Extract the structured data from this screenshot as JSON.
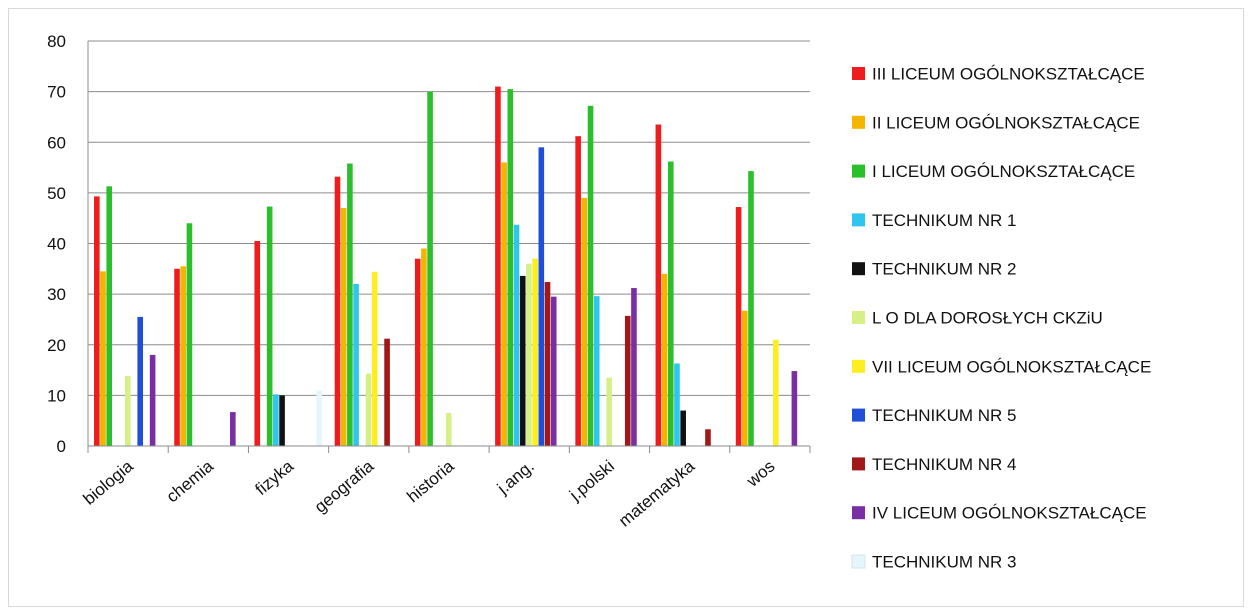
{
  "chart_data": {
    "type": "bar",
    "title": "",
    "xlabel": "",
    "ylabel": "",
    "ylim": [
      0,
      80
    ],
    "yticks": [
      0,
      10,
      20,
      30,
      40,
      50,
      60,
      70,
      80
    ],
    "grid": true,
    "legend_position": "right",
    "categories": [
      "biologia",
      "chemia",
      "fizyka",
      "geografia",
      "historia",
      "j.ang.",
      "j.polski",
      "matematyka",
      "wos"
    ],
    "series": [
      {
        "name": "III LICEUM OGÓLNOKSZTAŁCĄCE",
        "color": "#ee1c1c",
        "values": [
          49.3,
          35,
          40.5,
          53.2,
          37,
          71,
          61.2,
          63.5,
          47.2
        ]
      },
      {
        "name": "II LICEUM OGÓLNOKSZTAŁCĄCE",
        "color": "#f5b400",
        "values": [
          34.5,
          35.5,
          null,
          47,
          39,
          56,
          49,
          34,
          26.7
        ]
      },
      {
        "name": "I LICEUM OGÓLNOKSZTAŁCĄCE",
        "color": "#2bc02b",
        "values": [
          51.3,
          44,
          47.3,
          55.8,
          70,
          70.5,
          67.2,
          56.2,
          54.3
        ]
      },
      {
        "name": "TECHNIKUM NR 1",
        "color": "#2ec5ef",
        "values": [
          null,
          null,
          10.2,
          32,
          null,
          43.7,
          29.6,
          16.3,
          null
        ]
      },
      {
        "name": "TECHNIKUM NR 2",
        "color": "#111111",
        "values": [
          null,
          null,
          10,
          null,
          null,
          33.6,
          null,
          7,
          null
        ]
      },
      {
        "name": "L O DLA DOROSŁYCH CKZiU",
        "color": "#d6ef86",
        "values": [
          13.8,
          null,
          null,
          14.3,
          6.5,
          36,
          13.5,
          null,
          null
        ]
      },
      {
        "name": "VII LICEUM OGÓLNOKSZTAŁCĄCE",
        "color": "#fcee21",
        "values": [
          null,
          null,
          null,
          34.4,
          null,
          37,
          null,
          null,
          21
        ]
      },
      {
        "name": "TECHNIKUM NR 5",
        "color": "#1f4fd8",
        "values": [
          25.5,
          null,
          null,
          null,
          null,
          59,
          null,
          null,
          null
        ]
      },
      {
        "name": "TECHNIKUM NR 4",
        "color": "#a01818",
        "values": [
          null,
          null,
          null,
          21.2,
          null,
          32.4,
          25.7,
          3.3,
          null
        ]
      },
      {
        "name": "IV LICEUM OGÓLNOKSZTAŁCĄCE",
        "color": "#7a2ea3",
        "values": [
          18,
          6.7,
          null,
          null,
          null,
          29.5,
          31.2,
          null,
          14.8
        ]
      },
      {
        "name": "TECHNIKUM NR 3",
        "color": "#e4f6fb",
        "values": [
          null,
          null,
          11,
          null,
          null,
          null,
          null,
          null,
          null
        ]
      }
    ]
  }
}
